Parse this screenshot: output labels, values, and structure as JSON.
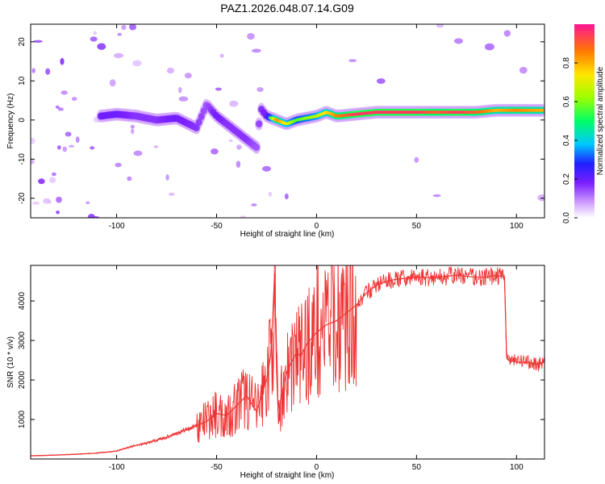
{
  "figure": {
    "title": "PAZ1.2026.048.07.14.G09"
  },
  "chart_data": [
    {
      "type": "heatmap",
      "xlabel": "Height of straight line (km)",
      "ylabel": "Frequency (Hz)",
      "xlim": [
        -143,
        114
      ],
      "ylim": [
        -25,
        24.5
      ],
      "xticks": [
        -100,
        -50,
        0,
        50,
        100
      ],
      "yticks": [
        -20,
        -10,
        0,
        10,
        20
      ],
      "colorbar": {
        "label": "Normalized spectral amplitude",
        "range": [
          0,
          1
        ],
        "ticks": [
          "0.0",
          "0.2",
          "0.4",
          "0.6",
          "0.8"
        ],
        "tick_values": [
          0,
          0.2,
          0.4,
          0.6,
          0.8
        ]
      },
      "ridge": {
        "x": [
          -108,
          -100,
          -90,
          -80,
          -70,
          -60,
          -55,
          -50,
          -45,
          -40,
          -35,
          -30,
          -28,
          -25,
          -20,
          -15,
          -10,
          -5,
          0,
          5,
          10,
          20,
          30,
          40,
          50,
          60,
          70,
          80,
          90,
          100,
          114
        ],
        "freq": [
          1,
          1.5,
          1,
          0,
          0.5,
          -2,
          4,
          1,
          -1,
          -3,
          -5,
          -7,
          3,
          1,
          0,
          -1,
          0,
          0.5,
          1,
          2,
          1,
          1.5,
          2,
          2,
          2,
          2,
          2,
          2,
          2.5,
          2.5,
          2.5
        ],
        "amplitude": [
          0.35,
          0.35,
          0.3,
          0.3,
          0.35,
          0.3,
          0.25,
          0.35,
          0.3,
          0.3,
          0.3,
          0.25,
          0.3,
          0.35,
          0.85,
          0.7,
          0.55,
          0.6,
          0.65,
          0.75,
          0.85,
          0.95,
          0.95,
          0.95,
          0.95,
          0.9,
          0.95,
          0.9,
          0.8,
          0.85,
          0.8
        ]
      }
    },
    {
      "type": "line",
      "xlabel": "Height of straight line (km)",
      "ylabel": "SNR (10 * v/v)",
      "xlim": [
        -143,
        114
      ],
      "ylim": [
        0,
        4900
      ],
      "xticks": [
        -100,
        -50,
        0,
        50,
        100
      ],
      "yticks": [
        1000,
        2000,
        3000,
        4000
      ],
      "series": [
        {
          "name": "SNR",
          "color": "#ee3333",
          "x": [
            -143,
            -130,
            -120,
            -110,
            -100,
            -95,
            -90,
            -85,
            -80,
            -75,
            -70,
            -65,
            -60,
            -55,
            -50,
            -45,
            -40,
            -35,
            -30,
            -27,
            -25,
            -23,
            -22,
            -21,
            -20,
            -19,
            -18,
            -15,
            -12,
            -10,
            -8,
            -5,
            0,
            5,
            10,
            15,
            20,
            25,
            30,
            35,
            40,
            50,
            60,
            70,
            80,
            85,
            90,
            94,
            95,
            96,
            100,
            105,
            110,
            114
          ],
          "y": [
            80,
            100,
            120,
            150,
            200,
            280,
            350,
            400,
            480,
            550,
            650,
            750,
            850,
            950,
            1150,
            1100,
            1350,
            1600,
            1200,
            1700,
            2000,
            2600,
            3500,
            4700,
            2200,
            900,
            1500,
            2200,
            2500,
            2700,
            2600,
            2900,
            3200,
            3400,
            3500,
            3700,
            3900,
            4200,
            4400,
            4500,
            4550,
            4600,
            4600,
            4650,
            4600,
            4600,
            4650,
            4600,
            2700,
            2500,
            2450,
            2450,
            2400,
            2450
          ]
        }
      ]
    }
  ]
}
